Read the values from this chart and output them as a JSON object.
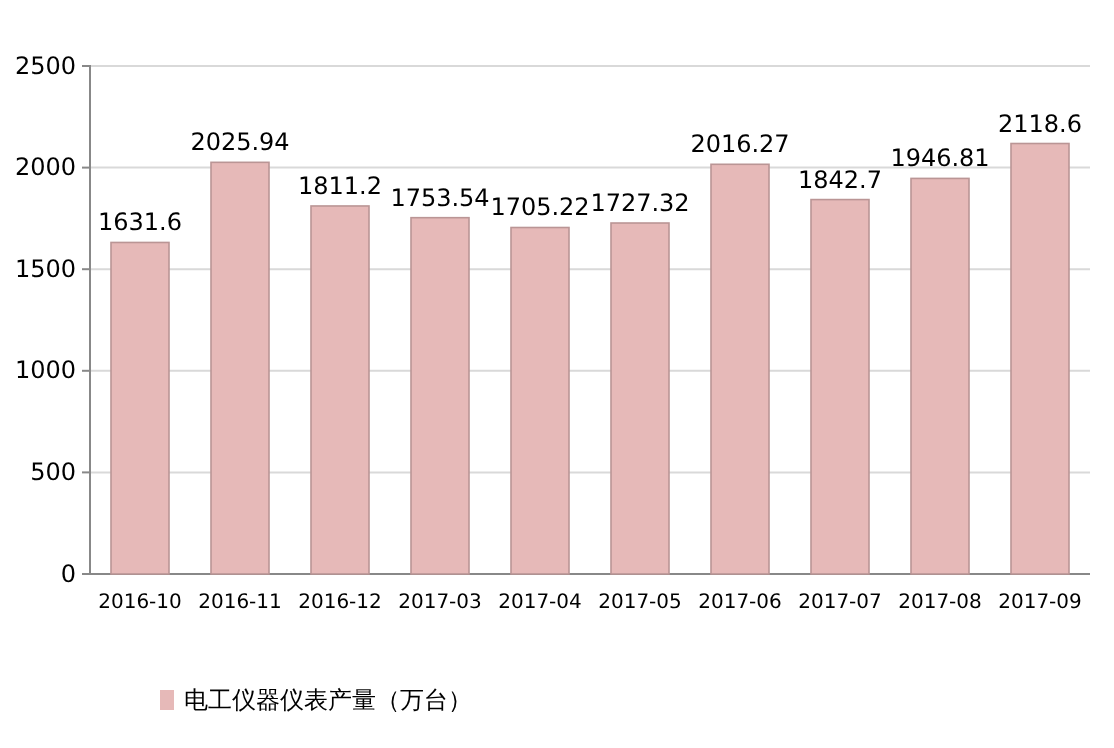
{
  "chart_data": {
    "type": "bar",
    "categories": [
      "2016-10",
      "2016-11",
      "2016-12",
      "2017-03",
      "2017-04",
      "2017-05",
      "2017-06",
      "2017-07",
      "2017-08",
      "2017-09"
    ],
    "series": [
      {
        "name": "电工仪器仪表产量（万台）",
        "color": "#e6b9b8",
        "values": [
          1631.6,
          2025.94,
          1811.2,
          1753.54,
          1705.22,
          1727.32,
          2016.27,
          1842.7,
          1946.81,
          2118.6
        ]
      }
    ],
    "ylim": [
      0,
      2500
    ],
    "yticks": [
      0,
      500,
      1000,
      1500,
      2000,
      2500
    ],
    "grid": "y",
    "legend": "bottom",
    "data_labels": true
  }
}
